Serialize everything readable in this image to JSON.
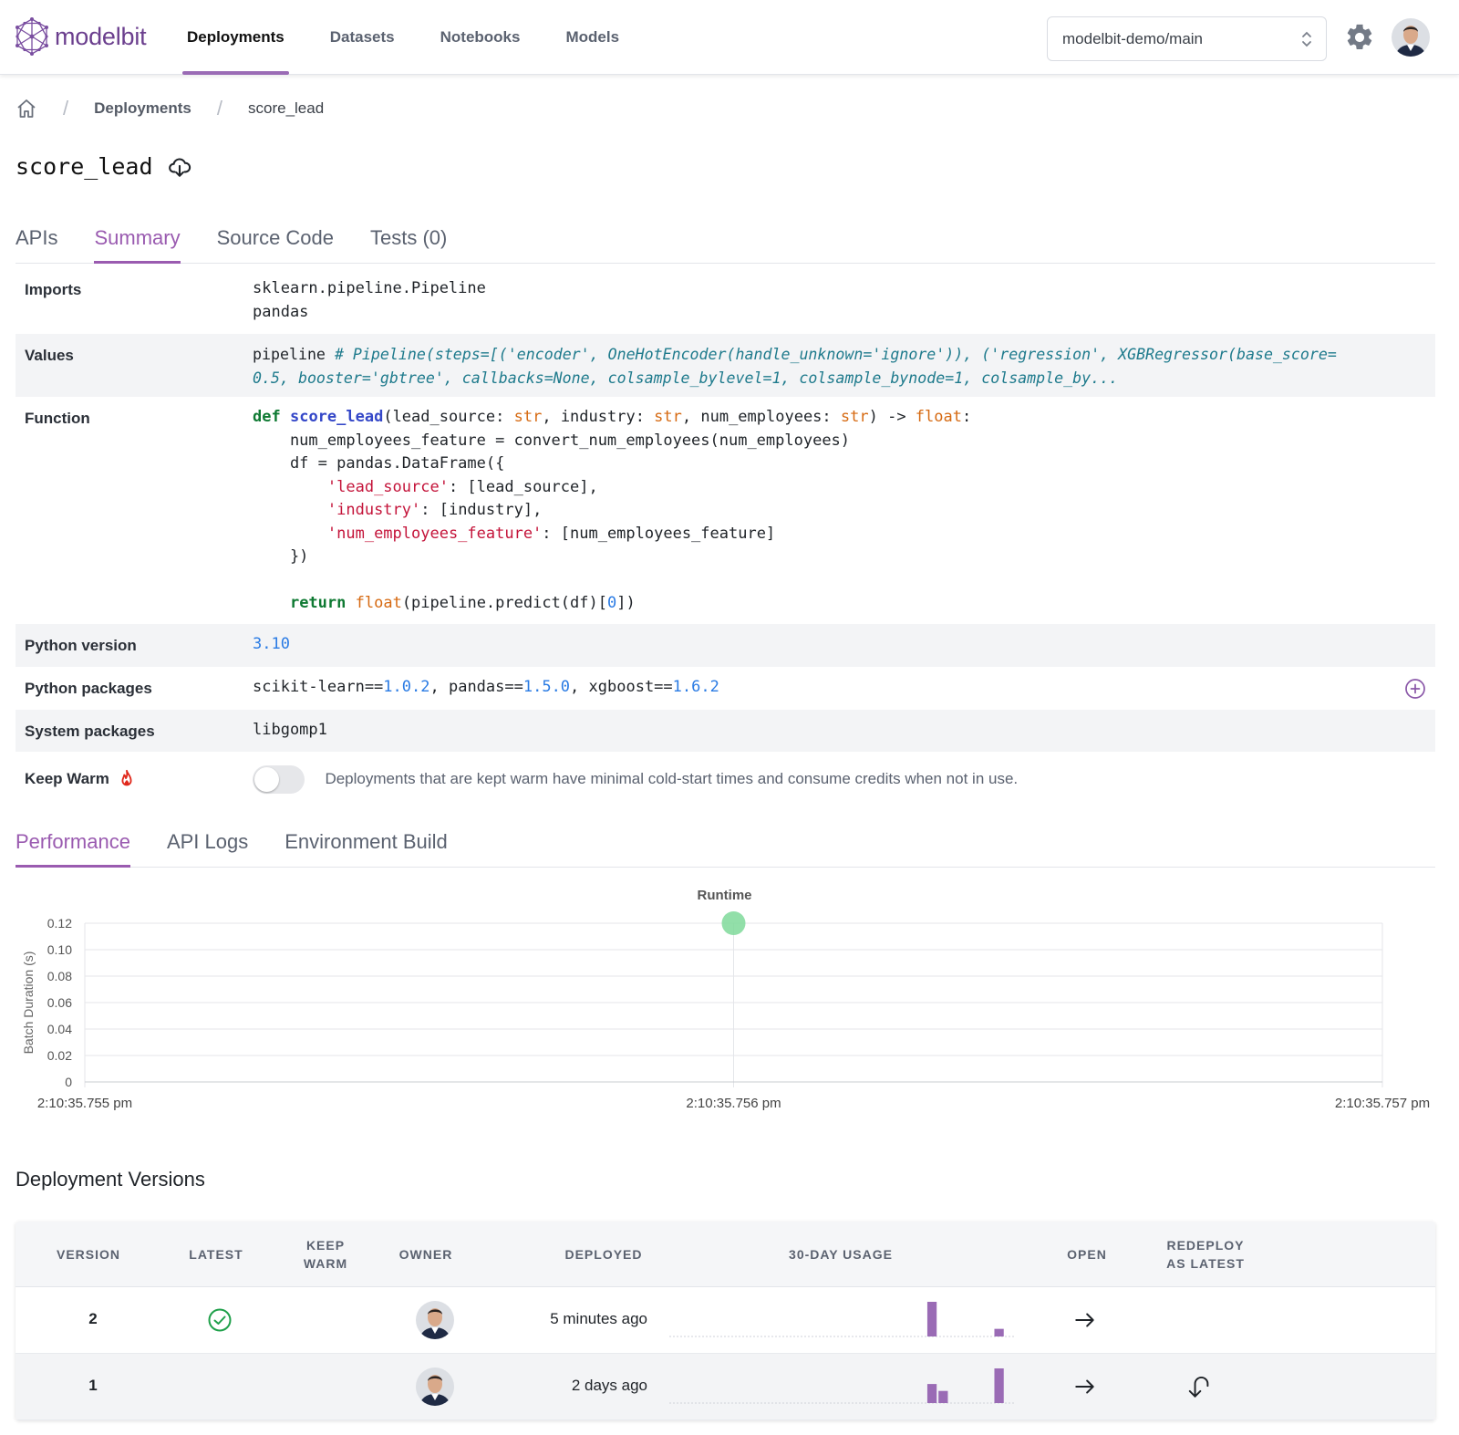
{
  "app": {
    "logo_text": "modelbit",
    "brand_color": "#6b3f8e",
    "accent_color": "#9a5bb0"
  },
  "nav": [
    {
      "label": "Deployments",
      "active": true
    },
    {
      "label": "Datasets",
      "active": false
    },
    {
      "label": "Notebooks",
      "active": false
    },
    {
      "label": "Models",
      "active": false
    }
  ],
  "branch_select": {
    "value": "modelbit-demo/main"
  },
  "breadcrumb": {
    "items": [
      "Deployments",
      "score_lead"
    ]
  },
  "page_title": "score_lead",
  "tabs": [
    "APIs",
    "Summary",
    "Source Code",
    "Tests (0)"
  ],
  "active_tab": "Summary",
  "summary": {
    "imports": {
      "label": "Imports",
      "lines": [
        "sklearn.pipeline.Pipeline",
        "pandas"
      ]
    },
    "values": {
      "label": "Values",
      "name": "pipeline",
      "comment_line1": "# Pipeline(steps=[('encoder', OneHotEncoder(handle_unknown='ignore')), ('regression', XGBRegressor(base_score=",
      "comment_line2": "0.5, booster='gbtree', callbacks=None, colsample_bylevel=1, colsample_bynode=1, colsample_by..."
    },
    "function": {
      "label": "Function",
      "code": {
        "kw_def": "def",
        "fn_name": "score_lead",
        "sig_a": "(lead_source: ",
        "ty": "str",
        "sig_b": ", industry: ",
        "sig_c": ", num_employees: ",
        "sig_d": ") -> ",
        "ret_ty": "float",
        "sig_e": ":",
        "line2": "    num_employees_feature = convert_num_employees(num_employees)",
        "line3": "    df = pandas.DataFrame({",
        "line4_str": "'lead_source'",
        "line4_rest": ": [lead_source],",
        "line5_str": "'industry'",
        "line5_rest": ": [industry],",
        "line6_str": "'num_employees_feature'",
        "line6_rest": ": [num_employees_feature]",
        "line7": "    })",
        "kw_return": "return",
        "float_fn": "float",
        "ret_a": "(pipeline.predict(df)[",
        "ret_num": "0",
        "ret_b": "])"
      }
    },
    "python_version": {
      "label": "Python version",
      "value": "3.10"
    },
    "python_packages": {
      "label": "Python packages",
      "items": [
        {
          "name": "scikit-learn==",
          "version": "1.0.2"
        },
        {
          "name": "pandas==",
          "version": "1.5.0"
        },
        {
          "name": "xgboost==",
          "version": "1.6.2"
        }
      ]
    },
    "system_packages": {
      "label": "System packages",
      "value": "libgomp1"
    },
    "keep_warm": {
      "label": "Keep Warm",
      "enabled": false,
      "description": "Deployments that are kept warm have minimal cold-start times and consume credits when not in use."
    }
  },
  "perf_tabs": [
    "Performance",
    "API Logs",
    "Environment Build"
  ],
  "active_perf_tab": "Performance",
  "chart_data": {
    "type": "scatter",
    "title": "Runtime",
    "xlabel": "",
    "ylabel": "Batch Duration (s)",
    "x_ticks": [
      "2:10:35.755 pm",
      "2:10:35.756 pm",
      "2:10:35.757 pm"
    ],
    "y_ticks": [
      "0",
      "0.02",
      "0.04",
      "0.06",
      "0.08",
      "0.10",
      "0.12"
    ],
    "ylim": [
      0,
      0.12
    ],
    "series": [
      {
        "points": [
          {
            "x": "2:10:35.756 pm",
            "y": 0.12
          }
        ],
        "color": "#7fd99a"
      }
    ],
    "grid": true,
    "legend": "none"
  },
  "versions": {
    "title": "Deployment Versions",
    "headers": {
      "version": "VERSION",
      "latest": "LATEST",
      "keep_warm_1": "KEEP",
      "keep_warm_2": "WARM",
      "owner": "OWNER",
      "deployed": "DEPLOYED",
      "usage": "30-DAY USAGE",
      "open": "OPEN",
      "redeploy_1": "REDEPLOY",
      "redeploy_2": "AS LATEST"
    },
    "rows": [
      {
        "version": "2",
        "latest": true,
        "deployed": "5 minutes ago",
        "usage": [
          0,
          0,
          0,
          0,
          0,
          0,
          0,
          0,
          0,
          0,
          0,
          0,
          0,
          0,
          0,
          0,
          0,
          0,
          0,
          0,
          0,
          0,
          0,
          1.0,
          0,
          0,
          0,
          0,
          0,
          0.22,
          0
        ],
        "redeploy": false
      },
      {
        "version": "1",
        "latest": false,
        "deployed": "2 days ago",
        "usage": [
          0,
          0,
          0,
          0,
          0,
          0,
          0,
          0,
          0,
          0,
          0,
          0,
          0,
          0,
          0,
          0,
          0,
          0,
          0,
          0,
          0,
          0,
          0,
          0.55,
          0.35,
          0,
          0,
          0,
          0,
          1.0,
          0
        ],
        "redeploy": true
      }
    ]
  }
}
